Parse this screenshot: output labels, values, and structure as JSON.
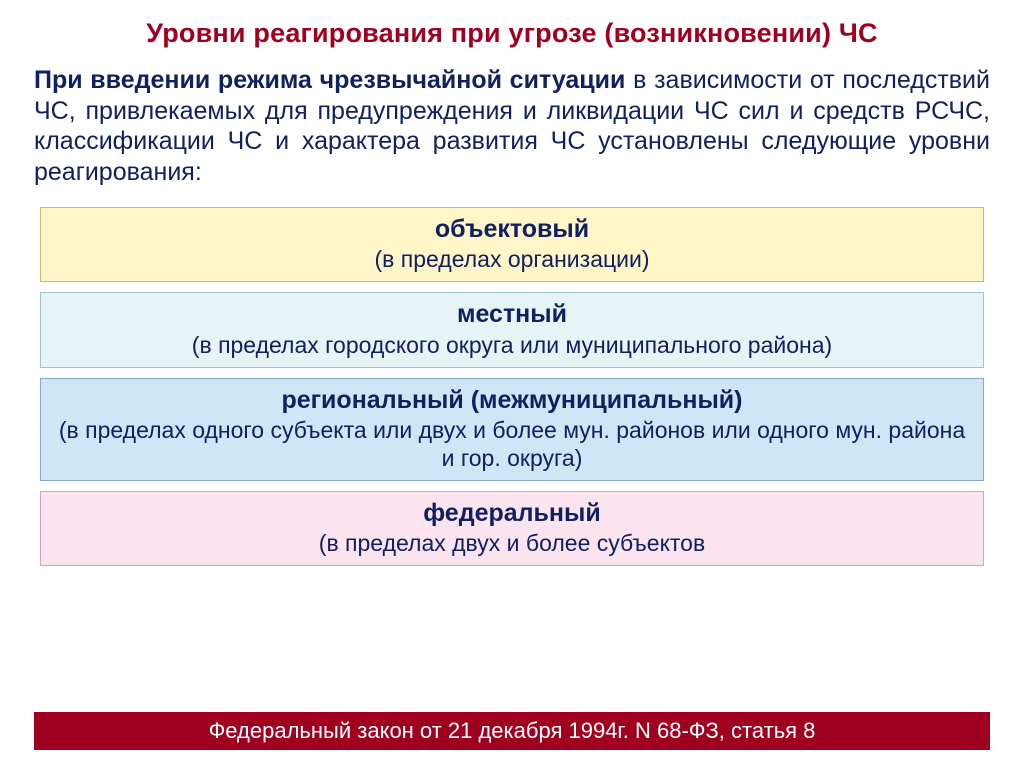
{
  "colors": {
    "title": "#a00020",
    "bodyText": "#102060",
    "bodyBold": "#102060",
    "levelText": "#102060",
    "footerBg": "#a00020",
    "footerText": "#ffffff"
  },
  "title": "Уровни реагирования при угрозе (возникновении) ЧС",
  "body": {
    "boldLead": "При введении режима чрезвычайной ситуации",
    "rest": " в зависимости от последствий ЧС, привлекаемых для предупреждения и ликвидации ЧС сил и средств РСЧС, классификации ЧС и характера развития ЧС установлены следующие уровни реагирования:"
  },
  "levels": [
    {
      "title": "объектовый",
      "desc": "(в пределах организации)",
      "bg": "#fff6c8",
      "border": "#c9b96a"
    },
    {
      "title": "местный",
      "desc": "(в пределах городского округа или муниципального района)",
      "bg": "#e6f4f6",
      "border": "#9ec6c9"
    },
    {
      "title": "региональный (межмуниципальный)",
      "desc": "(в пределах одного субъекта или двух и более мун. районов или одного мун. района и гор. округа)",
      "bg": "#cfe6f7",
      "border": "#7fa9c4"
    },
    {
      "title": "федеральный",
      "desc": "(в пределах двух и более субъектов",
      "bg": "#fbe3f0",
      "border": "#d49fc0"
    }
  ],
  "footer": "Федеральный закон от 21 декабря 1994г. N 68-ФЗ, статья 8"
}
